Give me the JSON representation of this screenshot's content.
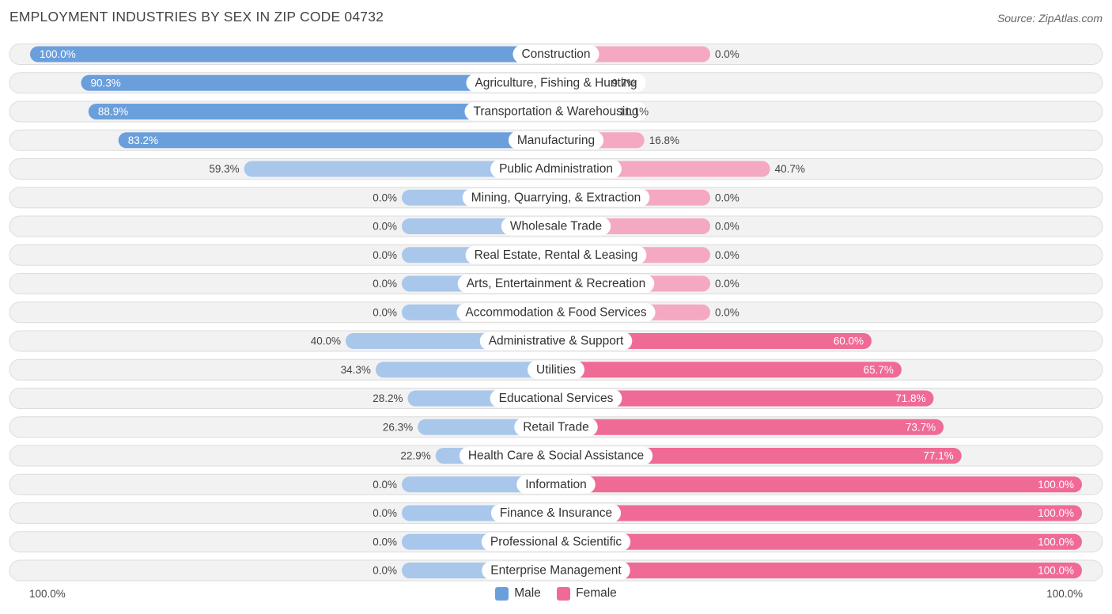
{
  "title": "EMPLOYMENT INDUSTRIES BY SEX IN ZIP CODE 04732",
  "source": "Source: ZipAtlas.com",
  "colors": {
    "male_strong": "#6a9fdc",
    "male_light": "#a9c7eb",
    "female_strong": "#f06a96",
    "female_light": "#f5a8c2"
  },
  "axis": {
    "left_label": "100.0%",
    "right_label": "100.0%"
  },
  "legend": {
    "male": "Male",
    "female": "Female"
  },
  "chart_data": {
    "type": "bar",
    "orientation": "horizontal-diverging",
    "title": "EMPLOYMENT INDUSTRIES BY SEX IN ZIP CODE 04732",
    "xlim": [
      -100,
      100
    ],
    "categories": [
      "Construction",
      "Agriculture, Fishing & Hunting",
      "Transportation & Warehousing",
      "Manufacturing",
      "Public Administration",
      "Mining, Quarrying, & Extraction",
      "Wholesale Trade",
      "Real Estate, Rental & Leasing",
      "Arts, Entertainment & Recreation",
      "Accommodation & Food Services",
      "Administrative & Support",
      "Utilities",
      "Educational Services",
      "Retail Trade",
      "Health Care & Social Assistance",
      "Information",
      "Finance & Insurance",
      "Professional & Scientific",
      "Enterprise Management"
    ],
    "series": [
      {
        "name": "Male",
        "values": [
          100.0,
          90.3,
          88.9,
          83.2,
          59.3,
          0.0,
          0.0,
          0.0,
          0.0,
          0.0,
          40.0,
          34.3,
          28.2,
          26.3,
          22.9,
          0.0,
          0.0,
          0.0,
          0.0
        ],
        "labels": [
          "100.0%",
          "90.3%",
          "88.9%",
          "83.2%",
          "59.3%",
          "0.0%",
          "0.0%",
          "0.0%",
          "0.0%",
          "0.0%",
          "40.0%",
          "34.3%",
          "28.2%",
          "26.3%",
          "22.9%",
          "0.0%",
          "0.0%",
          "0.0%",
          "0.0%"
        ]
      },
      {
        "name": "Female",
        "values": [
          0.0,
          9.7,
          11.1,
          16.8,
          40.7,
          0.0,
          0.0,
          0.0,
          0.0,
          0.0,
          60.0,
          65.7,
          71.8,
          73.7,
          77.1,
          100.0,
          100.0,
          100.0,
          100.0
        ],
        "labels": [
          "0.0%",
          "9.7%",
          "11.1%",
          "16.8%",
          "40.7%",
          "0.0%",
          "0.0%",
          "0.0%",
          "0.0%",
          "0.0%",
          "60.0%",
          "65.7%",
          "71.8%",
          "73.7%",
          "77.1%",
          "100.0%",
          "100.0%",
          "100.0%",
          "100.0%"
        ]
      }
    ]
  }
}
